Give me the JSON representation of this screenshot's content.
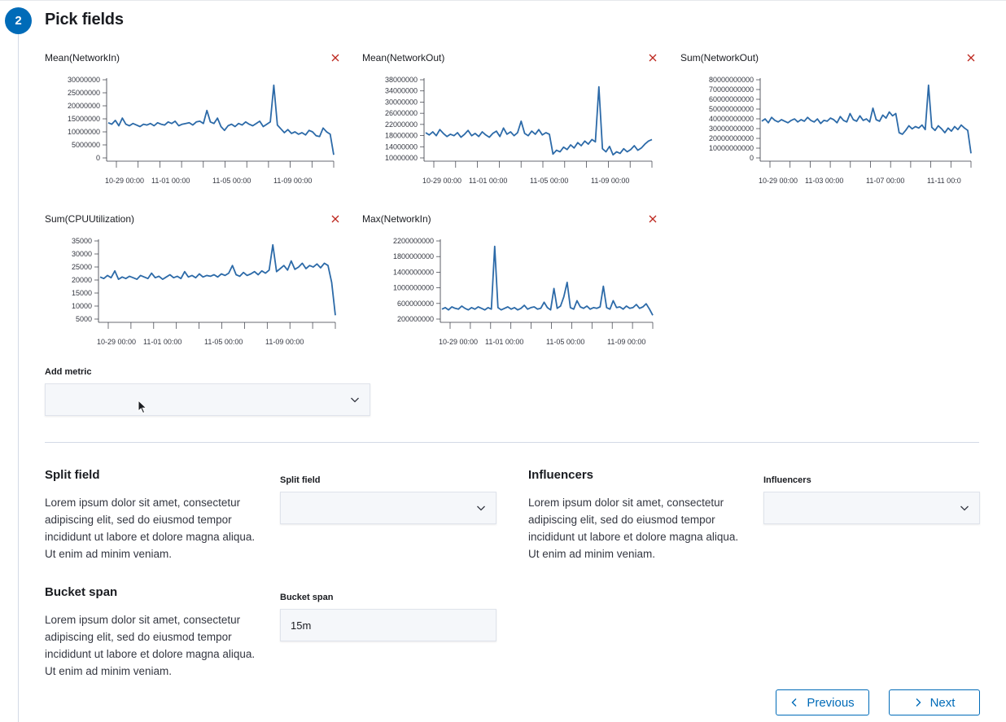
{
  "step": {
    "number": "2",
    "title": "Pick fields"
  },
  "charts": [
    {
      "title": "Mean(NetworkIn)",
      "yticks": [
        "30000000",
        "25000000",
        "20000000",
        "15000000",
        "10000000",
        "5000000",
        "0"
      ],
      "xticks": [
        "10-29 00:00",
        "11-01 00:00",
        "11-05 00:00",
        "11-09 00:00"
      ]
    },
    {
      "title": "Mean(NetworkOut)",
      "yticks": [
        "38000000",
        "34000000",
        "30000000",
        "26000000",
        "22000000",
        "18000000",
        "14000000",
        "10000000"
      ],
      "xticks": [
        "10-29 00:00",
        "11-01 00:00",
        "11-05 00:00",
        "11-09 00:00"
      ]
    },
    {
      "title": "Sum(NetworkOut)",
      "yticks": [
        "80000000000",
        "70000000000",
        "60000000000",
        "50000000000",
        "40000000000",
        "30000000000",
        "20000000000",
        "10000000000",
        "0"
      ],
      "xticks": [
        "10-29 00:00",
        "11-03 00:00",
        "11-07 00:00",
        "11-11 00:0"
      ]
    },
    {
      "title": "Sum(CPUUtilization)",
      "yticks": [
        "35000",
        "30000",
        "25000",
        "20000",
        "15000",
        "10000",
        "5000"
      ],
      "xticks": [
        "10-29 00:00",
        "11-01 00:00",
        "11-05 00:00",
        "11-09 00:00"
      ]
    },
    {
      "title": "Max(NetworkIn)",
      "yticks": [
        "2200000000",
        "1800000000",
        "1400000000",
        "1000000000",
        "600000000",
        "200000000"
      ],
      "xticks": [
        "10-29 00:00",
        "11-01 00:00",
        "11-05 00:00",
        "11-09 00:00"
      ]
    }
  ],
  "add_metric": {
    "label": "Add metric",
    "value": ""
  },
  "split_field": {
    "title": "Split field",
    "description": "Lorem ipsum dolor sit amet, consectetur adipiscing elit, sed do eiusmod tempor incididunt ut labore et dolore magna aliqua. Ut enim ad minim veniam.",
    "label": "Split field",
    "value": ""
  },
  "influencers": {
    "title": "Influencers",
    "description": "Lorem ipsum dolor sit amet, consectetur adipiscing elit, sed do eiusmod tempor incididunt ut labore et dolore magna aliqua. Ut enim ad minim veniam.",
    "label": "Influencers",
    "value": ""
  },
  "bucket_span": {
    "title": "Bucket span",
    "description": "Lorem ipsum dolor sit amet, consectetur adipiscing elit, sed do eiusmod tempor incididunt ut labore et dolore magna aliqua. Ut enim ad minim veniam.",
    "label": "Bucket span",
    "value": "15m"
  },
  "nav": {
    "previous": "Previous",
    "next": "Next"
  },
  "colors": {
    "accent": "#006bb8",
    "line": "#2c6aa8",
    "remove": "#bd271e"
  },
  "icons": {
    "remove": "cross-icon",
    "dropdown": "chevron-down-icon",
    "previous": "chevron-left-icon",
    "next": "chevron-right-icon",
    "cursor": "mouse-pointer-icon"
  }
}
